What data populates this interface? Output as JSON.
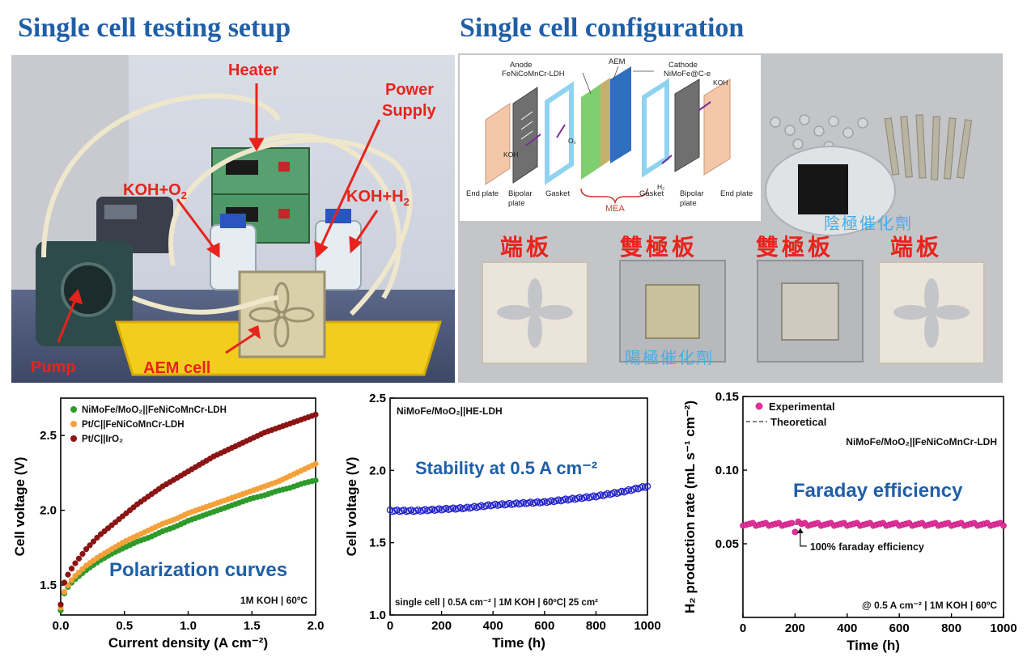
{
  "titles": {
    "left": "Single cell testing setup",
    "right": "Single cell configuration"
  },
  "setup_photo": {
    "labels": {
      "heater": "Heater",
      "power_supply_1": "Power",
      "power_supply_2": "Supply",
      "koh_o2_a": "KOH+O",
      "koh_o2_b": "2",
      "koh_h2_a": "KOH+H",
      "koh_h2_b": "2",
      "pump": "Pump",
      "aem_cell": "AEM cell"
    }
  },
  "diagram": {
    "anode_1": "Anode",
    "anode_2": "FeNiCoMnCr-LDH",
    "aem": "AEM",
    "cathode_1": "Cathode",
    "cathode_2": "NiMoFe@C-e",
    "koh_left": "KOH",
    "koh_right": "KOH",
    "o2": "O₂",
    "h2": "H₂",
    "end_plate_left": "End plate",
    "bipolar_left_1": "Bipolar",
    "bipolar_left_2": "plate",
    "gasket_left": "Gasket",
    "mea": "MEA",
    "gasket_right": "Gasket",
    "bipolar_right_1": "Bipolar",
    "bipolar_right_2": "plate",
    "end_plate_right": "End plate"
  },
  "components_photo": {
    "end_plate_left": "端板",
    "bipolar_left": "雙極板",
    "bipolar_right": "雙極板",
    "end_plate_right": "端板",
    "anode_catalyst": "陽極催化劑",
    "cathode_catalyst": "陰極催化劑"
  },
  "chart_data": [
    {
      "type": "line",
      "title": "Polarization curves",
      "xlabel": "Current density (A cm⁻²)",
      "ylabel": "Cell voltage (V)",
      "xlim": [
        0.0,
        2.0
      ],
      "ylim": [
        1.3,
        2.75
      ],
      "xticks": [
        "0.0",
        "0.5",
        "1.0",
        "1.5",
        "2.0"
      ],
      "yticks": [
        "1.5",
        "2.0",
        "2.5"
      ],
      "annotation": "1M KOH | 60ºC",
      "legend_position": "top-left",
      "series": [
        {
          "name": "NiMoFe/MoO₂||FeNiCoMnCr-LDH",
          "color": "#2e9a2a",
          "x": [
            0.0,
            0.02,
            0.05,
            0.1,
            0.2,
            0.3,
            0.4,
            0.5,
            0.6,
            0.7,
            0.8,
            0.9,
            1.0,
            1.1,
            1.2,
            1.3,
            1.4,
            1.5,
            1.6,
            1.7,
            1.8,
            1.9,
            2.0
          ],
          "y": [
            1.33,
            1.43,
            1.48,
            1.53,
            1.6,
            1.66,
            1.71,
            1.75,
            1.79,
            1.82,
            1.86,
            1.89,
            1.93,
            1.96,
            1.99,
            2.02,
            2.05,
            2.08,
            2.1,
            2.13,
            2.15,
            2.18,
            2.2
          ]
        },
        {
          "name": "Pt/C||FeNiCoMnCr-LDH",
          "color": "#f5a13a",
          "x": [
            0.0,
            0.02,
            0.05,
            0.1,
            0.2,
            0.3,
            0.4,
            0.5,
            0.6,
            0.7,
            0.8,
            0.9,
            1.0,
            1.1,
            1.2,
            1.3,
            1.4,
            1.5,
            1.6,
            1.7,
            1.8,
            1.9,
            2.0
          ],
          "y": [
            1.35,
            1.44,
            1.49,
            1.55,
            1.63,
            1.69,
            1.74,
            1.79,
            1.83,
            1.87,
            1.91,
            1.94,
            1.98,
            2.01,
            2.04,
            2.07,
            2.1,
            2.13,
            2.16,
            2.19,
            2.23,
            2.27,
            2.31
          ]
        },
        {
          "name": "Pt/C||IrO₂",
          "color": "#8b1414",
          "x": [
            0.0,
            0.02,
            0.05,
            0.1,
            0.2,
            0.3,
            0.4,
            0.5,
            0.6,
            0.7,
            0.8,
            0.9,
            1.0,
            1.1,
            1.2,
            1.3,
            1.4,
            1.5,
            1.6,
            1.7,
            1.8,
            1.9,
            2.0
          ],
          "y": [
            1.37,
            1.5,
            1.56,
            1.63,
            1.74,
            1.83,
            1.9,
            1.97,
            2.04,
            2.1,
            2.16,
            2.21,
            2.26,
            2.31,
            2.36,
            2.4,
            2.44,
            2.48,
            2.52,
            2.55,
            2.58,
            2.61,
            2.64
          ]
        }
      ]
    },
    {
      "type": "scatter",
      "title": "Stability at 0.5 A cm⁻²",
      "label_top": "NiMoFe/MoO₂||HE-LDH",
      "xlabel": "Time (h)",
      "ylabel": "Cell voltage (V)",
      "xlim": [
        0,
        1000
      ],
      "ylim": [
        1.0,
        2.5
      ],
      "xticks": [
        "0",
        "200",
        "400",
        "600",
        "800",
        "1000"
      ],
      "yticks": [
        "1.0",
        "1.5",
        "2.0",
        "2.5"
      ],
      "annotation": "single cell | 0.5A cm⁻² | 1M KOH | 60ºC| 25 cm²",
      "series": [
        {
          "name": "Cell voltage",
          "color": "#2222cc",
          "x": [
            0,
            100,
            200,
            300,
            400,
            500,
            600,
            700,
            800,
            900,
            1000
          ],
          "y": [
            1.72,
            1.72,
            1.73,
            1.74,
            1.76,
            1.77,
            1.78,
            1.8,
            1.82,
            1.85,
            1.89
          ]
        }
      ]
    },
    {
      "type": "scatter",
      "title": "Faraday efficiency",
      "label_top": "NiMoFe/MoO₂||FeNiCoMnCr-LDH",
      "xlabel": "Time (h)",
      "ylabel": "H₂ production rate (mL s⁻¹ cm⁻²)",
      "xlim": [
        0,
        1000
      ],
      "ylim": [
        0.0,
        0.15
      ],
      "xticks": [
        "0",
        "200",
        "400",
        "600",
        "800",
        "1000"
      ],
      "yticks": [
        "0.05",
        "0.10",
        "0.15"
      ],
      "annotation": "@ 0.5 A cm⁻² | 1M KOH | 60ºC",
      "pointer_label": "100% faraday efficiency",
      "legend": [
        "Experimental",
        "Theoretical"
      ],
      "theoretical": 0.0632,
      "series": [
        {
          "name": "Experimental",
          "color": "#e0309a",
          "x": [
            0,
            100,
            200,
            210,
            300,
            400,
            500,
            600,
            700,
            800,
            900,
            1000
          ],
          "y": [
            0.064,
            0.063,
            0.063,
            0.058,
            0.063,
            0.063,
            0.063,
            0.063,
            0.063,
            0.063,
            0.063,
            0.063
          ]
        }
      ]
    }
  ],
  "colors": {
    "title_blue": "#1f5fa8",
    "label_red": "#e8231c",
    "label_cyan": "#44aee8"
  }
}
